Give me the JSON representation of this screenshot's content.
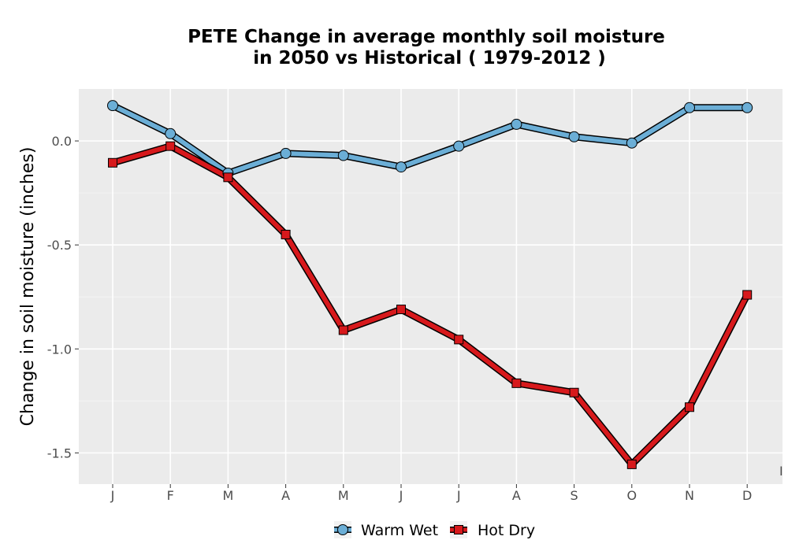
{
  "chart_data": {
    "type": "line",
    "title_line1": "PETE  Change in average monthly soil moisture",
    "title_line2": "in 2050 vs Historical ( 1979-2012 )",
    "xlabel": "",
    "ylabel": "Change in soil moisture (inches)",
    "categories": [
      "J",
      "F",
      "M",
      "A",
      "M",
      "J",
      "J",
      "A",
      "S",
      "O",
      "N",
      "D"
    ],
    "ylim": [
      -1.65,
      0.25
    ],
    "yticks": [
      0.0,
      -0.5,
      -1.0,
      -1.5
    ],
    "ytick_labels": [
      "0.0",
      "-0.5",
      "-1.0",
      "-1.5"
    ],
    "grid": true,
    "legend_position": "bottom",
    "series": [
      {
        "name": "Warm Wet",
        "marker": "circle",
        "color": "#6baed6",
        "values": [
          0.17,
          0.035,
          -0.155,
          -0.06,
          -0.07,
          -0.125,
          -0.025,
          0.08,
          0.02,
          -0.01,
          0.16,
          0.16
        ]
      },
      {
        "name": "Hot Dry",
        "marker": "square",
        "color": "#d7191c",
        "values": [
          -0.105,
          -0.025,
          -0.175,
          -0.45,
          -0.91,
          -0.81,
          -0.955,
          -1.165,
          -1.21,
          -1.555,
          -1.28,
          -0.74
        ]
      }
    ],
    "stray_tick_label": "I"
  }
}
